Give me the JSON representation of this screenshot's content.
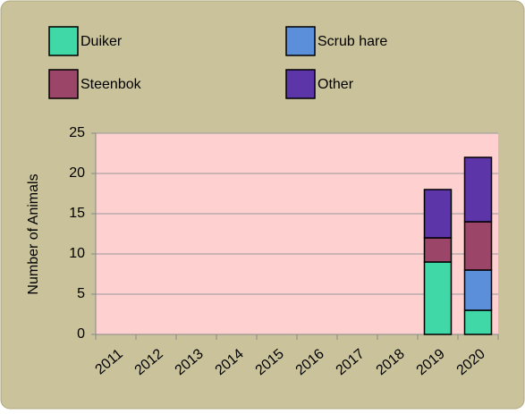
{
  "chart_data": {
    "type": "bar",
    "stacked": true,
    "y_label": "Number of Animals",
    "categories": [
      "2011",
      "2012",
      "2013",
      "2014",
      "2015",
      "2016",
      "2017",
      "2018",
      "2019",
      "2020"
    ],
    "series": [
      {
        "name": "Duiker",
        "color": "#3fd8a6",
        "values": [
          0,
          0,
          0,
          0,
          0,
          0,
          0,
          0,
          9,
          3
        ]
      },
      {
        "name": "Scrub hare",
        "color": "#5b8fd9",
        "values": [
          0,
          0,
          0,
          0,
          0,
          0,
          0,
          0,
          0,
          5
        ]
      },
      {
        "name": "Steenbok",
        "color": "#9b4668",
        "values": [
          0,
          0,
          0,
          0,
          0,
          0,
          0,
          0,
          3,
          6
        ]
      },
      {
        "name": "Other",
        "color": "#5c35a8",
        "values": [
          0,
          0,
          0,
          0,
          0,
          0,
          0,
          0,
          6,
          8
        ]
      }
    ],
    "ylim": [
      0,
      25
    ],
    "yticks": [
      0,
      5,
      10,
      15,
      20,
      25
    ],
    "grid": true
  }
}
